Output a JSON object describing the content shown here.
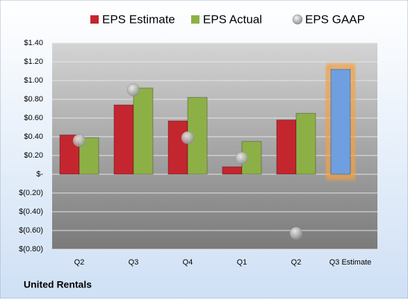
{
  "chart_data": {
    "type": "bar",
    "categories": [
      "Q2",
      "Q3",
      "Q4",
      "Q1",
      "Q2",
      "Q3 Estimate"
    ],
    "series": [
      {
        "name": "EPS Estimate",
        "color": "#c3262e",
        "values": [
          0.42,
          0.74,
          0.57,
          0.08,
          0.58,
          1.12
        ],
        "point_colors": [
          "#c3262e",
          "#c3262e",
          "#c3262e",
          "#c3262e",
          "#c3262e",
          "#6f9fe0"
        ]
      },
      {
        "name": "EPS Actual",
        "color": "#8db046",
        "values": [
          0.39,
          0.92,
          0.82,
          0.35,
          0.65,
          null
        ]
      },
      {
        "name": "EPS GAAP",
        "color": "#a9a9a9",
        "marker": "circle",
        "values": [
          0.36,
          0.9,
          0.39,
          0.17,
          -0.63,
          null
        ]
      }
    ],
    "ylim": [
      -0.8,
      1.4
    ],
    "yticks": [
      {
        "value": 1.4,
        "label": "$1.40"
      },
      {
        "value": 1.2,
        "label": "$1.20"
      },
      {
        "value": 1.0,
        "label": "$1.00"
      },
      {
        "value": 0.8,
        "label": "$0.80"
      },
      {
        "value": 0.6,
        "label": "$0.60"
      },
      {
        "value": 0.4,
        "label": "$0.40"
      },
      {
        "value": 0.2,
        "label": "$0.20"
      },
      {
        "value": 0,
        "label": "$-"
      },
      {
        "value": -0.2,
        "label": "$(0.20)"
      },
      {
        "value": -0.4,
        "label": "$(0.40)"
      },
      {
        "value": -0.6,
        "label": "$(0.60)"
      },
      {
        "value": -0.8,
        "label": "$(0.80)"
      }
    ],
    "grid": true,
    "legend": "top",
    "footer": "United Rentals"
  }
}
